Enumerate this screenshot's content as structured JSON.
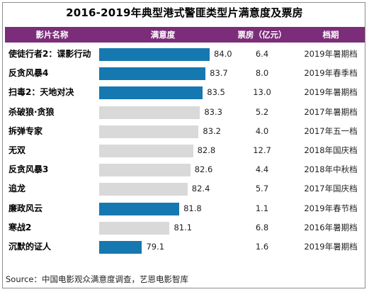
{
  "chart_data": {
    "type": "table",
    "title": "2016-2019年典型港式警匪类型片满意度及票房",
    "columns": [
      "影片名称",
      "满意度",
      "票房（亿元）",
      "档期"
    ],
    "colors": {
      "highlight": "#1678b0",
      "default": "#d9d9d9",
      "header": "#7b2d79"
    },
    "scale_min": 76,
    "scale_max": 84,
    "rows": [
      {
        "name": "使徒行者2：谍影行动",
        "score": "84.0",
        "box": "6.4",
        "period": "2019年暑期档",
        "highlight": true
      },
      {
        "name": "反贪风暴4",
        "score": "83.7",
        "box": "8.0",
        "period": "2019年春季档",
        "highlight": true
      },
      {
        "name": "扫毒2：天地对决",
        "score": "83.5",
        "box": "13.0",
        "period": "2019年暑期档",
        "highlight": true
      },
      {
        "name": "杀破狼·贪狼",
        "score": "83.3",
        "box": "5.2",
        "period": "2017年暑期档",
        "highlight": false
      },
      {
        "name": "拆弹专家",
        "score": "83.2",
        "box": "4.0",
        "period": "2017年五一档",
        "highlight": false
      },
      {
        "name": "无双",
        "score": "82.8",
        "box": "12.7",
        "period": "2018年国庆档",
        "highlight": false
      },
      {
        "name": "反贪风暴3",
        "score": "82.6",
        "box": "4.4",
        "period": "2018年中秋档",
        "highlight": false
      },
      {
        "name": "追龙",
        "score": "82.4",
        "box": "5.7",
        "period": "2017年国庆档",
        "highlight": false
      },
      {
        "name": "廉政风云",
        "score": "81.8",
        "box": "1.1",
        "period": "2019年春节档",
        "highlight": true
      },
      {
        "name": "寒战2",
        "score": "81.1",
        "box": "6.8",
        "period": "2016年暑期档",
        "highlight": false
      },
      {
        "name": "沉默的证人",
        "score": "79.1",
        "box": "1.6",
        "period": "2019年暑期档",
        "highlight": true
      }
    ]
  },
  "source": "Source：中国电影观众满意度调查，艺恩电影智库"
}
